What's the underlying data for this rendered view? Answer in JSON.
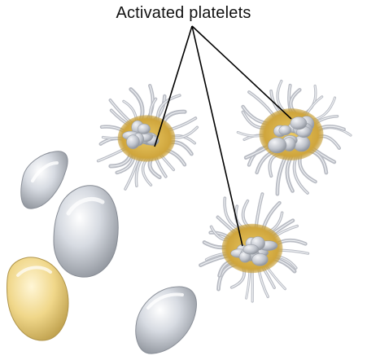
{
  "label": {
    "text": "Activated platelets"
  },
  "colors": {
    "background": "#ffffff",
    "platelet_body": "#c9ccd3",
    "platelet_core": "#d8b24a",
    "pseudopod": "#b9bcc4",
    "resting_silver": "#d7dbe2",
    "resting_gold": "#f0d78a",
    "leader_line": "#000000"
  },
  "diagram": {
    "activated_platelets_count": 3,
    "resting_platelets_count": 4,
    "icons": [
      "activated-platelet-icon",
      "resting-platelet-icon"
    ]
  }
}
